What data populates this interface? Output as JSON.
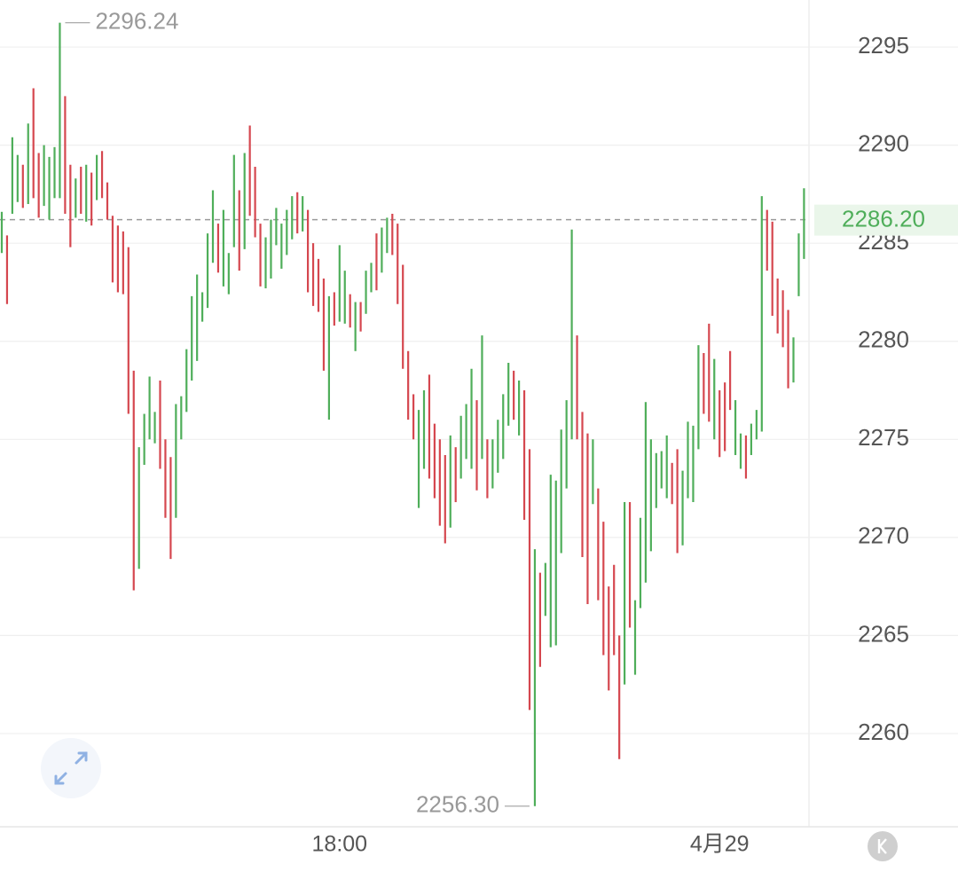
{
  "chart_data": {
    "type": "ohlc",
    "up_color": "#4fae5a",
    "down_color": "#d5474f",
    "ylim": [
      2255.34,
      2297.4
    ],
    "yticks": [
      2260,
      2265,
      2270,
      2275,
      2280,
      2285,
      2290,
      2295
    ],
    "grid": true,
    "xticks": [
      {
        "value": 64,
        "label": "18:00"
      },
      {
        "value": 136,
        "label": "4月29"
      }
    ],
    "high": [
      2286.6,
      2285.4,
      2290.4,
      2289.5,
      2289.0,
      2291.1,
      2292.9,
      2289.6,
      2290.0,
      2289.4,
      2289.9,
      2296.24,
      2292.5,
      2289.0,
      2288.3,
      2288.9,
      2289.0,
      2288.6,
      2289.5,
      2289.7,
      2288.1,
      2286.4,
      2285.9,
      2285.6,
      2284.8,
      2278.5,
      2274.6,
      2276.3,
      2278.2,
      2276.4,
      2278.0,
      2275.0,
      2274.1,
      2276.8,
      2277.2,
      2279.6,
      2282.3,
      2283.4,
      2282.5,
      2285.5,
      2287.7,
      2286.0,
      2286.7,
      2284.5,
      2289.5,
      2287.7,
      2289.6,
      2291.0,
      2288.9,
      2286.0,
      2285.3,
      2286.2,
      2286.8,
      2286.0,
      2286.7,
      2287.4,
      2287.6,
      2287.4,
      2286.7,
      2285.0,
      2284.2,
      2283.2,
      2282.3,
      2282.5,
      2284.9,
      2283.6,
      2282.4,
      2282.0,
      2282.0,
      2283.6,
      2284.0,
      2285.5,
      2285.8,
      2286.3,
      2286.5,
      2286.0,
      2283.9,
      2279.5,
      2277.3,
      2276.5,
      2277.5,
      2278.3,
      2275.8,
      2275.0,
      2274.2,
      2275.2,
      2274.6,
      2276.2,
      2276.8,
      2278.6,
      2277.0,
      2280.3,
      2275.0,
      2275.0,
      2276.0,
      2277.3,
      2278.9,
      2278.5,
      2278.0,
      2277.5,
      2274.5,
      2269.4,
      2268.2,
      2268.7,
      2273.2,
      2272.9,
      2275.5,
      2277.0,
      2285.7,
      2280.3,
      2276.4,
      2275.3,
      2275.0,
      2272.5,
      2270.8,
      2267.5,
      2268.6,
      2265.0,
      2271.8,
      2271.8,
      2266.8,
      2271.0,
      2276.9,
      2275.0,
      2274.3,
      2274.4,
      2275.2,
      2273.8,
      2274.5,
      2273.4,
      2275.9,
      2275.7,
      2279.8,
      2279.4,
      2280.9,
      2279.1,
      2277.5,
      2277.9,
      2279.5,
      2277.0,
      2275.3,
      2275.2,
      2275.8,
      2276.5,
      2287.4,
      2286.7,
      2286.1,
      2283.2,
      2282.6,
      2281.6,
      2280.2,
      2285.5,
      2287.8
    ],
    "low": [
      2284.5,
      2281.9,
      2286.5,
      2287.1,
      2286.8,
      2287.0,
      2287.3,
      2286.3,
      2286.9,
      2286.2,
      2287.3,
      2287.3,
      2286.5,
      2284.8,
      2286.3,
      2286.5,
      2286.1,
      2285.9,
      2287.2,
      2287.3,
      2286.2,
      2283.0,
      2282.5,
      2282.4,
      2276.3,
      2267.3,
      2268.4,
      2273.7,
      2275.0,
      2274.8,
      2273.5,
      2271.0,
      2268.9,
      2271.0,
      2275.0,
      2276.4,
      2278.0,
      2279.0,
      2281.0,
      2281.7,
      2284.0,
      2283.5,
      2282.8,
      2282.4,
      2284.8,
      2283.6,
      2284.7,
      2286.4,
      2285.3,
      2282.8,
      2282.7,
      2283.2,
      2284.9,
      2283.7,
      2284.4,
      2285.2,
      2285.5,
      2285.6,
      2282.5,
      2281.8,
      2281.5,
      2278.5,
      2276.0,
      2280.8,
      2281.0,
      2280.9,
      2280.7,
      2279.5,
      2280.5,
      2281.4,
      2282.5,
      2282.6,
      2283.5,
      2284.5,
      2284.4,
      2281.9,
      2278.6,
      2276.0,
      2275.0,
      2271.5,
      2273.5,
      2273.0,
      2272.0,
      2270.6,
      2269.7,
      2270.5,
      2271.8,
      2273.0,
      2274.0,
      2273.5,
      2272.4,
      2274.0,
      2272.0,
      2272.5,
      2273.3,
      2274.0,
      2275.7,
      2276.0,
      2275.2,
      2270.9,
      2261.2,
      2256.3,
      2263.4,
      2266.0,
      2264.4,
      2264.5,
      2269.2,
      2272.5,
      2275.0,
      2275.0,
      2269.0,
      2266.6,
      2271.7,
      2266.8,
      2264.0,
      2262.2,
      2264.0,
      2258.7,
      2262.5,
      2265.4,
      2263.0,
      2266.4,
      2267.7,
      2269.3,
      2271.5,
      2272.5,
      2272.0,
      2271.7,
      2269.2,
      2269.6,
      2272.0,
      2271.8,
      2274.5,
      2276.3,
      2275.9,
      2275.0,
      2274.1,
      2274.4,
      2276.5,
      2274.2,
      2273.5,
      2273.0,
      2274.2,
      2275.0,
      2275.4,
      2283.6,
      2281.3,
      2280.4,
      2279.7,
      2277.6,
      2277.9,
      2282.3,
      2284.2
    ],
    "rising": [
      true,
      false,
      true,
      true,
      false,
      true,
      false,
      false,
      true,
      true,
      true,
      true,
      false,
      false,
      true,
      false,
      true,
      false,
      true,
      false,
      false,
      false,
      false,
      false,
      false,
      false,
      true,
      true,
      true,
      true,
      false,
      false,
      false,
      true,
      true,
      true,
      true,
      true,
      true,
      true,
      true,
      false,
      true,
      true,
      true,
      false,
      true,
      false,
      false,
      false,
      true,
      true,
      true,
      true,
      true,
      true,
      false,
      true,
      false,
      false,
      false,
      false,
      true,
      false,
      true,
      true,
      false,
      true,
      false,
      true,
      true,
      false,
      true,
      true,
      false,
      false,
      false,
      false,
      false,
      true,
      true,
      false,
      false,
      false,
      false,
      true,
      false,
      true,
      true,
      true,
      false,
      true,
      false,
      true,
      true,
      true,
      true,
      false,
      true,
      false,
      false,
      true,
      false,
      true,
      true,
      true,
      true,
      true,
      true,
      false,
      false,
      false,
      true,
      false,
      false,
      false,
      false,
      false,
      true,
      false,
      true,
      true,
      true,
      true,
      true,
      true,
      true,
      false,
      false,
      true,
      true,
      true,
      true,
      false,
      false,
      true,
      false,
      false,
      false,
      true,
      true,
      false,
      true,
      true,
      true,
      false,
      false,
      false,
      false,
      false,
      true,
      true,
      true
    ],
    "annotations": [
      {
        "value": 2296.24,
        "label": "2296.24"
      },
      {
        "value": 2256.3,
        "label": "2256.30"
      }
    ],
    "last_price": {
      "value": 2286.2,
      "label": "2286.20"
    }
  }
}
